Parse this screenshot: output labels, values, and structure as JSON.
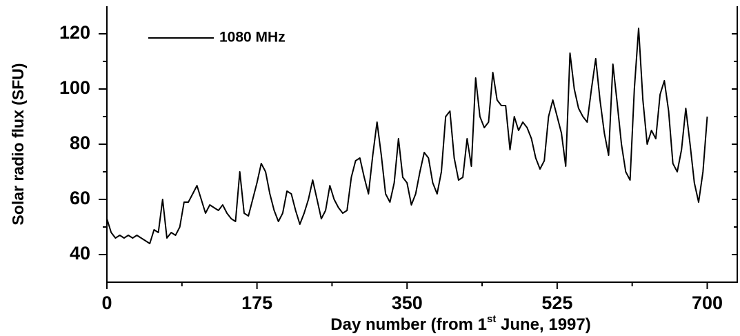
{
  "chart_data": {
    "type": "line",
    "xlabel": [
      "Day number (from 1",
      "st",
      " June, 1997)"
    ],
    "ylabel": "Solar radio flux (SFU)",
    "xlim": [
      0,
      735
    ],
    "ylim": [
      30,
      130
    ],
    "xticks": [
      0,
      175,
      350,
      525,
      700
    ],
    "yticks": [
      40,
      60,
      80,
      100,
      120
    ],
    "xminorticks": [
      87.5,
      262.5,
      437.5,
      612.5
    ],
    "yminorticks": [
      50,
      70,
      90,
      110
    ],
    "legend": "upper left",
    "x": [
      0,
      5,
      10,
      15,
      20,
      25,
      30,
      35,
      40,
      45,
      50,
      55,
      60,
      65,
      70,
      75,
      80,
      85,
      90,
      95,
      100,
      105,
      110,
      115,
      120,
      125,
      130,
      135,
      140,
      145,
      150,
      155,
      160,
      165,
      170,
      175,
      180,
      185,
      190,
      195,
      200,
      205,
      210,
      215,
      220,
      225,
      230,
      235,
      240,
      245,
      250,
      255,
      260,
      265,
      270,
      275,
      280,
      285,
      290,
      295,
      300,
      305,
      310,
      315,
      320,
      325,
      330,
      335,
      340,
      345,
      350,
      355,
      360,
      365,
      370,
      375,
      380,
      385,
      390,
      395,
      400,
      405,
      410,
      415,
      420,
      425,
      430,
      435,
      440,
      445,
      450,
      455,
      460,
      465,
      470,
      475,
      480,
      485,
      490,
      495,
      500,
      505,
      510,
      515,
      520,
      525,
      530,
      535,
      540,
      545,
      550,
      555,
      560,
      565,
      570,
      575,
      580,
      585,
      590,
      595,
      600,
      605,
      610,
      615,
      620,
      625,
      630,
      635,
      640,
      645,
      650,
      655,
      660,
      665,
      670,
      675,
      680,
      685,
      690,
      695,
      700
    ],
    "series": [
      {
        "name": "1080 MHz",
        "color": "#000000",
        "values": [
          53,
          48,
          46,
          47,
          46,
          47,
          46,
          47,
          46,
          45,
          44,
          49,
          48,
          60,
          46,
          48,
          47,
          50,
          59,
          59,
          62,
          65,
          60,
          55,
          58,
          57,
          56,
          58,
          55,
          53,
          52,
          70,
          55,
          54,
          60,
          66,
          73,
          70,
          62,
          56,
          52,
          55,
          63,
          62,
          56,
          51,
          55,
          60,
          67,
          60,
          53,
          56,
          65,
          60,
          57,
          55,
          56,
          68,
          74,
          75,
          68,
          62,
          76,
          88,
          76,
          62,
          59,
          66,
          82,
          68,
          66,
          58,
          62,
          70,
          77,
          75,
          66,
          62,
          70,
          90,
          92,
          75,
          67,
          68,
          82,
          72,
          104,
          90,
          86,
          88,
          106,
          96,
          94,
          94,
          78,
          90,
          85,
          88,
          86,
          82,
          75,
          71,
          74,
          90,
          96,
          90,
          84,
          72,
          113,
          100,
          93,
          90,
          88,
          100,
          111,
          96,
          84,
          76,
          109,
          95,
          80,
          70,
          67,
          100,
          122,
          96,
          80,
          85,
          82,
          98,
          103,
          92,
          73,
          70,
          78,
          93,
          80,
          66,
          59,
          70,
          90
        ]
      }
    ]
  }
}
